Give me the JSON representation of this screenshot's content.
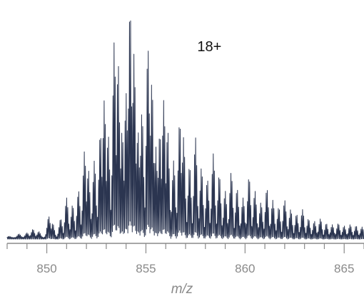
{
  "chart_data": {
    "type": "line",
    "title": "",
    "xlabel": "m/z",
    "ylabel": "",
    "xlim": [
      848.0,
      866.0
    ],
    "ylim": [
      0,
      100
    ],
    "xticks": [
      850,
      855,
      860,
      865
    ],
    "xtick_labels": [
      "850",
      "855",
      "860",
      "865"
    ],
    "minor_tick_step": 1,
    "grid": false,
    "legend": "none",
    "annotations": [
      {
        "text": "18+",
        "x": 858.2
      }
    ],
    "colors": {
      "trace": "#2b3550",
      "axis": "#8a8a8a",
      "text": "#111111"
    },
    "series": [
      {
        "peaks": [
          {
            "x": 848.1,
            "y": 1.5
          },
          {
            "x": 848.6,
            "y": 2.5
          },
          {
            "x": 849.0,
            "y": 3.0
          },
          {
            "x": 849.3,
            "y": 4.5
          },
          {
            "x": 849.6,
            "y": 3.5
          },
          {
            "x": 850.1,
            "y": 10.0
          },
          {
            "x": 850.3,
            "y": 7.0
          },
          {
            "x": 850.7,
            "y": 9.0
          },
          {
            "x": 851.0,
            "y": 18.0
          },
          {
            "x": 851.3,
            "y": 15.0
          },
          {
            "x": 851.6,
            "y": 21.0
          },
          {
            "x": 851.9,
            "y": 38.0
          },
          {
            "x": 852.1,
            "y": 30.0
          },
          {
            "x": 852.4,
            "y": 34.0
          },
          {
            "x": 852.7,
            "y": 46.0
          },
          {
            "x": 852.9,
            "y": 60.0
          },
          {
            "x": 853.1,
            "y": 45.0
          },
          {
            "x": 853.4,
            "y": 85.0
          },
          {
            "x": 853.6,
            "y": 76.0
          },
          {
            "x": 853.8,
            "y": 47.0
          },
          {
            "x": 854.0,
            "y": 63.0
          },
          {
            "x": 854.2,
            "y": 100.0
          },
          {
            "x": 854.4,
            "y": 80.0
          },
          {
            "x": 854.6,
            "y": 47.0
          },
          {
            "x": 854.8,
            "y": 55.0
          },
          {
            "x": 855.1,
            "y": 83.0
          },
          {
            "x": 855.3,
            "y": 68.0
          },
          {
            "x": 855.5,
            "y": 40.0
          },
          {
            "x": 855.7,
            "y": 46.0
          },
          {
            "x": 855.9,
            "y": 60.0
          },
          {
            "x": 856.1,
            "y": 47.0
          },
          {
            "x": 856.4,
            "y": 34.0
          },
          {
            "x": 856.7,
            "y": 51.0
          },
          {
            "x": 856.9,
            "y": 44.0
          },
          {
            "x": 857.2,
            "y": 32.0
          },
          {
            "x": 857.5,
            "y": 44.0
          },
          {
            "x": 857.8,
            "y": 31.0
          },
          {
            "x": 858.1,
            "y": 26.0
          },
          {
            "x": 858.4,
            "y": 37.0
          },
          {
            "x": 858.7,
            "y": 28.0
          },
          {
            "x": 859.0,
            "y": 21.0
          },
          {
            "x": 859.3,
            "y": 29.0
          },
          {
            "x": 859.6,
            "y": 22.0
          },
          {
            "x": 859.9,
            "y": 18.0
          },
          {
            "x": 860.2,
            "y": 27.0
          },
          {
            "x": 860.5,
            "y": 21.0
          },
          {
            "x": 860.8,
            "y": 16.0
          },
          {
            "x": 861.1,
            "y": 22.0
          },
          {
            "x": 861.4,
            "y": 17.0
          },
          {
            "x": 861.7,
            "y": 14.0
          },
          {
            "x": 862.0,
            "y": 17.0
          },
          {
            "x": 862.3,
            "y": 13.0
          },
          {
            "x": 862.6,
            "y": 11.0
          },
          {
            "x": 862.9,
            "y": 13.0
          },
          {
            "x": 863.2,
            "y": 9.0
          },
          {
            "x": 863.5,
            "y": 8.0
          },
          {
            "x": 863.8,
            "y": 9.0
          },
          {
            "x": 864.1,
            "y": 7.0
          },
          {
            "x": 864.4,
            "y": 6.5
          },
          {
            "x": 864.7,
            "y": 7.0
          },
          {
            "x": 865.0,
            "y": 6.0
          },
          {
            "x": 865.3,
            "y": 6.5
          },
          {
            "x": 865.6,
            "y": 6.0
          },
          {
            "x": 865.9,
            "y": 5.5
          }
        ],
        "baseline": 1.0,
        "fine_period": 0.0556
      }
    ]
  }
}
